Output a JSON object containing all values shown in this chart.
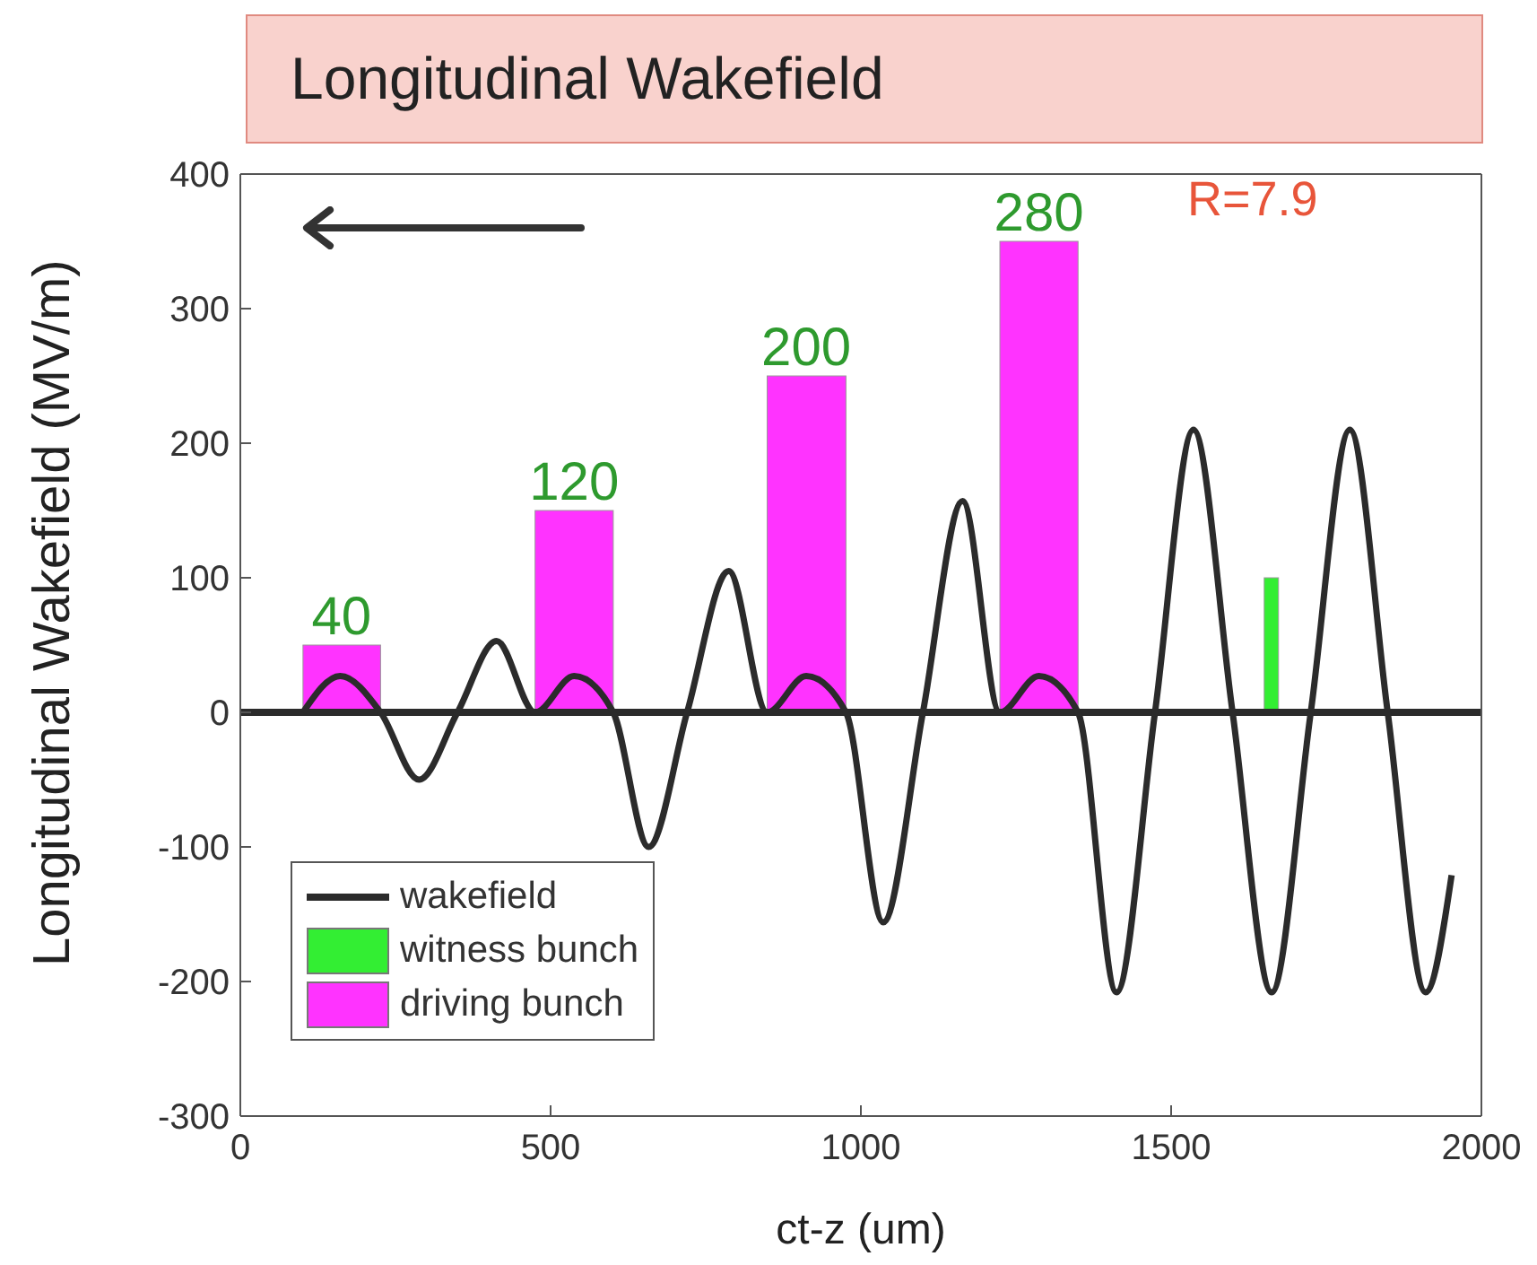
{
  "chart_data": {
    "type": "line",
    "title": "Longitudinal Wakefield",
    "xlabel": "ct-z (um)",
    "ylabel": "Longitudinal Wakefield (MV/m)",
    "xlim": [
      0,
      2000
    ],
    "xticks": [
      0,
      500,
      1000,
      1500,
      2000
    ],
    "ylim": [
      -300,
      400
    ],
    "yticks": [
      -300,
      -200,
      -100,
      0,
      100,
      200,
      300,
      400
    ],
    "grid": false,
    "legend": "bottom left",
    "marker": "none",
    "line_style": "solid",
    "ref_lines": [
      {
        "axis": "y",
        "value": 0,
        "color": "#2b2b2b"
      }
    ],
    "annotations": [
      "R=7.9",
      {
        "text": "40",
        "x": 163,
        "y": 50
      },
      {
        "text": "120",
        "x": 538,
        "y": 150
      },
      {
        "text": "200",
        "x": 912,
        "y": 250
      },
      {
        "text": "280",
        "x": 1287,
        "y": 350
      }
    ],
    "series": [
      {
        "name": "wakefield",
        "color": "#2b2b2b",
        "x": [
          101,
          161,
          226,
          288,
          350,
          413,
          475,
          538,
          601,
          658,
          720,
          787,
          849,
          912,
          976,
          1036,
          1100,
          1164,
          1224,
          1287,
          1350,
          1412,
          1474,
          1536,
          1599,
          1662,
          1725,
          1788,
          1849,
          1910,
          1952
        ],
        "values": [
          0,
          27,
          0,
          -50,
          0,
          53,
          0,
          27,
          0,
          -100,
          0,
          105,
          0,
          27,
          0,
          -156,
          0,
          157,
          0,
          27,
          0,
          -208,
          0,
          210,
          0,
          -208,
          0,
          210,
          0,
          -208,
          -121
        ]
      },
      {
        "name": "witness bunch",
        "type": "histogram",
        "color": "#33ee33",
        "bins": [
          1650,
          1673
        ],
        "values": [
          100
        ]
      },
      {
        "name": "driving bunch",
        "type": "histogram",
        "color": "#ff33ff",
        "bins": [
          101,
          226,
          475,
          601,
          849,
          976,
          1224,
          1350
        ],
        "values": [
          50,
          null,
          150,
          null,
          250,
          null,
          350
        ]
      }
    ]
  }
}
